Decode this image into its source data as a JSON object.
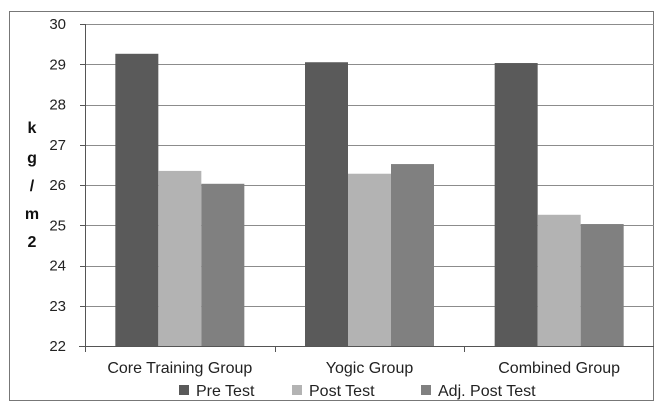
{
  "chart_data": {
    "type": "bar",
    "title": "",
    "xlabel": "",
    "ylabel": "kg/m2",
    "ylabel_chars": [
      "k",
      "g",
      "/",
      "m",
      "2"
    ],
    "ylim": [
      22,
      30
    ],
    "yticks": [
      22,
      23,
      24,
      25,
      26,
      27,
      28,
      29,
      30
    ],
    "grid": true,
    "legend_position": "bottom",
    "categories": [
      "Core Training Group",
      "Yogic Group",
      "Combined Group"
    ],
    "series": [
      {
        "name": "Pre Test",
        "color": "#5a5a5a",
        "values": [
          29.26,
          29.05,
          29.03
        ]
      },
      {
        "name": "Post Test",
        "color": "#b3b3b3",
        "values": [
          26.35,
          26.28,
          25.26
        ]
      },
      {
        "name": "Adj. Post Test",
        "color": "#808080",
        "values": [
          26.03,
          26.52,
          25.03
        ]
      }
    ]
  }
}
